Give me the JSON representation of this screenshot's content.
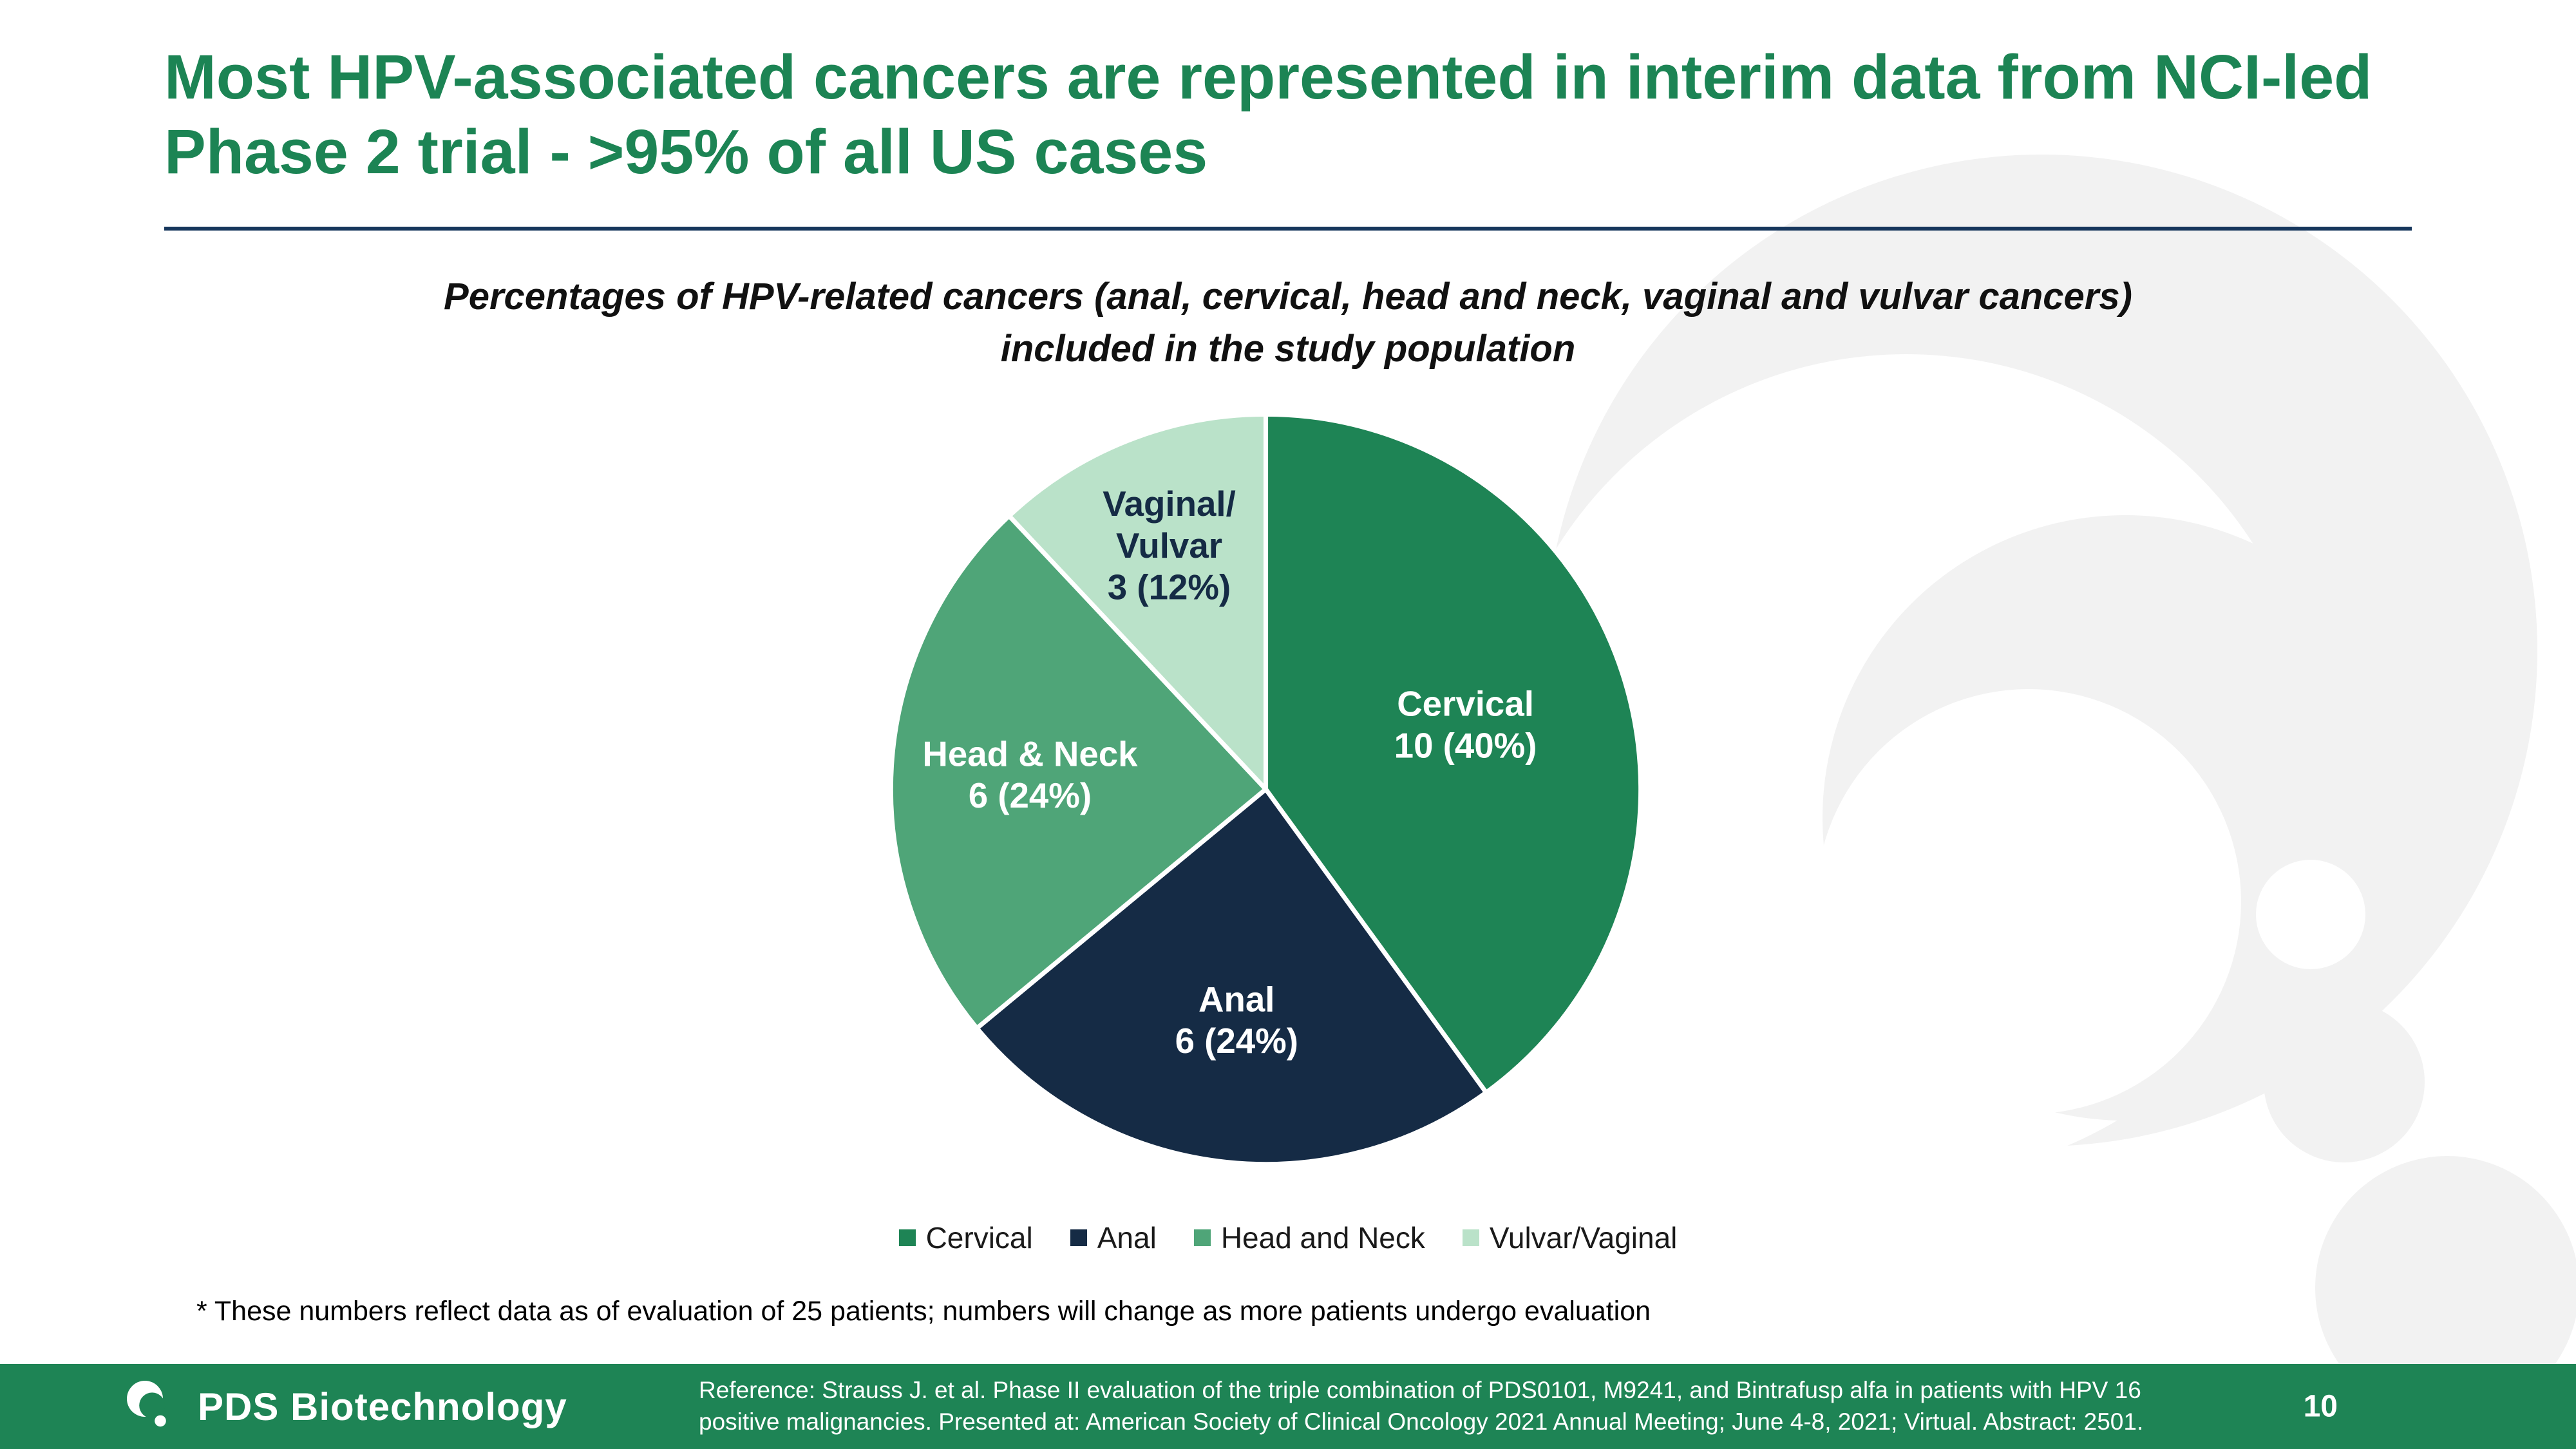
{
  "slide": {
    "title": "Most HPV-associated cancers are represented in interim data from NCI-led Phase 2 trial - >95% of all US cases",
    "footnote": "* These numbers reflect data as of evaluation of 25 patients; numbers will change as more patients undergo evaluation"
  },
  "chart_data": {
    "type": "pie",
    "title": "Percentages of HPV-related cancers (anal, cervical, head and neck, vaginal and vulvar cancers) included in the study population",
    "title_lines": [
      "Percentages of HPV-related cancers (anal, cervical, head and neck, vaginal and vulvar cancers)",
      "included in the study population"
    ],
    "total": 25,
    "slices": [
      {
        "name": "Cervical",
        "value": 10,
        "pct": 40,
        "color": "#1e8455",
        "label_lines": [
          "Cervical",
          "10 (40%)"
        ],
        "label_color": "#ffffff"
      },
      {
        "name": "Anal",
        "value": 6,
        "pct": 24,
        "color": "#152b45",
        "label_lines": [
          "Anal",
          "6 (24%)"
        ],
        "label_color": "#ffffff"
      },
      {
        "name": "Head & Neck",
        "value": 6,
        "pct": 24,
        "color": "#4fa578",
        "label_lines": [
          "Head & Neck",
          "6 (24%)"
        ],
        "label_color": "#ffffff"
      },
      {
        "name": "Vaginal/Vulvar",
        "value": 3,
        "pct": 12,
        "color": "#bae2c9",
        "label_lines": [
          "Vaginal/",
          "Vulvar",
          "3 (12%)"
        ],
        "label_color": "#152b45"
      }
    ],
    "legend": [
      {
        "label": "Cervical",
        "color": "#1e8455"
      },
      {
        "label": "Anal",
        "color": "#152b45"
      },
      {
        "label": "Head and Neck",
        "color": "#4fa578"
      },
      {
        "label": "Vulvar/Vaginal",
        "color": "#bae2c9"
      }
    ],
    "legend_position": "bottom",
    "start_angle_deg": 0,
    "direction": "clockwise"
  },
  "footer": {
    "logo_text": "PDS Biotechnology",
    "reference": "Reference: Strauss J. et al. Phase II evaluation of the triple combination of PDS0101, M9241, and Bintrafusp alfa in patients with HPV 16 positive malignancies. Presented at: American Society of Clinical Oncology 2021 Annual Meeting; June 4-8, 2021; Virtual. Abstract: 2501.",
    "page_number": "10",
    "bar_color": "#1e8455"
  },
  "colors": {
    "title_green": "#1c8454",
    "divider_navy": "#16365c",
    "watermark_gray": "#f2f2f2"
  }
}
